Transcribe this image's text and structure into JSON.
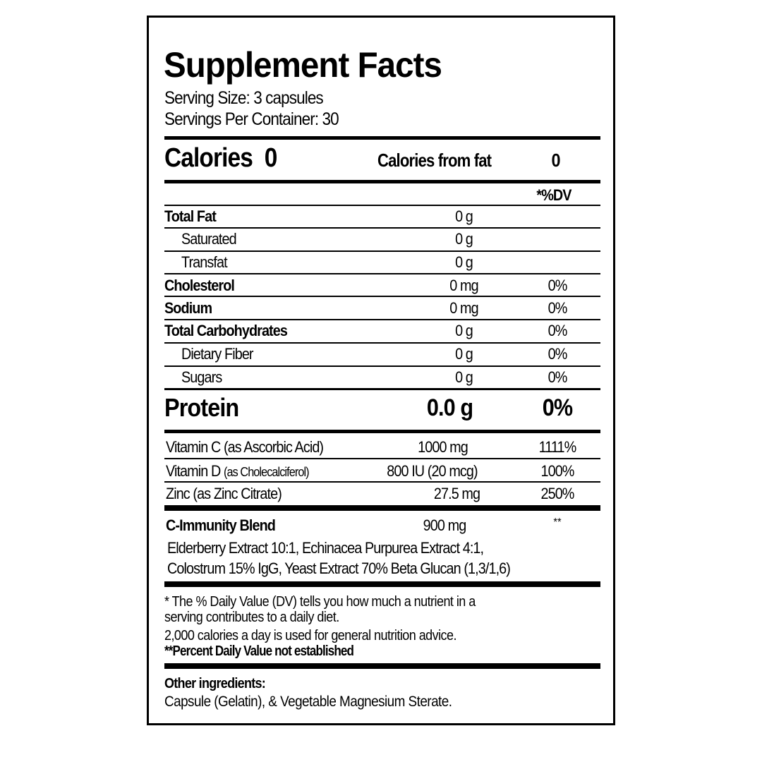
{
  "title": "Supplement Facts",
  "serving_size": "Serving Size: 3 capsules",
  "servings_per_container": "Servings Per Container: 30",
  "calories": {
    "label": "Calories",
    "value": "0",
    "from_fat_label": "Calories from fat",
    "from_fat_value": "0"
  },
  "dv_header": "*%DV",
  "nutrients": [
    {
      "name": "Total Fat",
      "amount": "0 g",
      "dv": ""
    },
    {
      "name": "Saturated",
      "amount": "0 g",
      "dv": ""
    },
    {
      "name": "Transfat",
      "amount": "0 g",
      "dv": ""
    },
    {
      "name": "Cholesterol",
      "amount": "0 mg",
      "dv": "0%"
    },
    {
      "name": "Sodium",
      "amount": "0 mg",
      "dv": "0%"
    },
    {
      "name": "Total Carbohydrates",
      "amount": "0 g",
      "dv": "0%"
    },
    {
      "name": "Dietary Fiber",
      "amount": "0 g",
      "dv": "0%"
    },
    {
      "name": "Sugars",
      "amount": "0 g",
      "dv": "0%"
    }
  ],
  "protein": {
    "name": "Protein",
    "amount": "0.0 g",
    "dv": "0%"
  },
  "vitamins": [
    {
      "name": "Vitamin C (as Ascorbic Acid)",
      "qualifier": "",
      "amount": "1000 mg",
      "dv": "1111%"
    },
    {
      "name": "Vitamin D",
      "qualifier": "(as Cholecalciferol)",
      "amount": "800 IU (20 mcg)",
      "dv": "100%"
    },
    {
      "name": "Zinc (as Zinc Citrate)",
      "qualifier": "",
      "amount": "27.5 mg",
      "dv": "250%"
    }
  ],
  "blend": {
    "name": "C-Immunity Blend",
    "amount": "900 mg",
    "dv": "**",
    "ingredients": [
      "Elderberry Extract 10:1, Echinacea Purpurea Extract 4:1,",
      "Colostrum 15% IgG, Yeast Extract 70% Beta Glucan (1,3/1,6)"
    ]
  },
  "footnote": [
    "* The % Daily Value (DV) tells you how much a nutrient in a",
    "serving contributes to a daily diet.",
    "2,000 calories a day is used for general nutrition advice.",
    "**Percent Daily Value not established"
  ],
  "other_ingredients": {
    "label": "Other  ingredients:",
    "text": "Capsule (Gelatin), & Vegetable Magnesium Sterate."
  }
}
